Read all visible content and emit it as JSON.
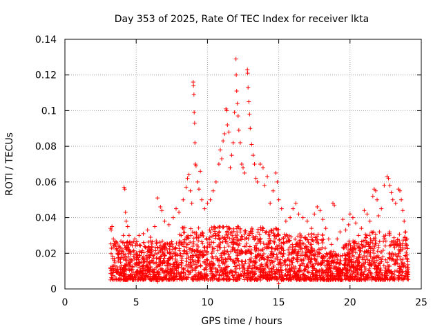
{
  "chart_data": {
    "type": "scatter",
    "title": "Day 353 of 2025, Rate Of TEC Index for receiver lkta",
    "xlabel": "GPS time / hours",
    "ylabel": "ROTI / TECUs",
    "xlim": [
      0,
      25
    ],
    "ylim": [
      0,
      0.14
    ],
    "xticks": [
      0,
      5,
      10,
      15,
      20,
      25
    ],
    "yticks": [
      0,
      0.02,
      0.04,
      0.06,
      0.08,
      0.1,
      0.12,
      0.14
    ],
    "xtick_labels": [
      "0",
      "5",
      "10",
      "15",
      "20",
      "25"
    ],
    "ytick_labels": [
      "0",
      "0.02",
      "0.04",
      "0.06",
      "0.08",
      "0.1",
      "0.12",
      "0.14"
    ],
    "grid": true,
    "marker": "plus",
    "color": "#ff0000",
    "series": [
      {
        "points": [
          [
            3.2,
            0.034
          ],
          [
            3.25,
            0.033
          ],
          [
            3.3,
            0.035
          ],
          [
            3.4,
            0.028
          ],
          [
            3.5,
            0.024
          ],
          [
            3.6,
            0.022
          ],
          [
            3.7,
            0.02
          ],
          [
            3.8,
            0.024
          ],
          [
            4.0,
            0.021
          ],
          [
            4.1,
            0.03
          ],
          [
            4.15,
            0.057
          ],
          [
            4.2,
            0.056
          ],
          [
            4.25,
            0.043
          ],
          [
            4.3,
            0.038
          ],
          [
            4.4,
            0.035
          ],
          [
            4.5,
            0.03
          ],
          [
            4.7,
            0.026
          ],
          [
            4.9,
            0.028
          ],
          [
            5.2,
            0.03
          ],
          [
            5.5,
            0.031
          ],
          [
            5.8,
            0.033
          ],
          [
            6.0,
            0.029
          ],
          [
            6.3,
            0.035
          ],
          [
            6.5,
            0.051
          ],
          [
            6.7,
            0.046
          ],
          [
            6.8,
            0.044
          ],
          [
            7.0,
            0.038
          ],
          [
            7.3,
            0.036
          ],
          [
            7.6,
            0.04
          ],
          [
            7.8,
            0.045
          ],
          [
            8.0,
            0.043
          ],
          [
            8.3,
            0.05
          ],
          [
            8.5,
            0.057
          ],
          [
            8.6,
            0.062
          ],
          [
            8.7,
            0.064
          ],
          [
            8.8,
            0.055
          ],
          [
            8.9,
            0.048
          ],
          [
            9.0,
            0.116
          ],
          [
            9.02,
            0.114
          ],
          [
            9.05,
            0.109
          ],
          [
            9.07,
            0.099
          ],
          [
            9.1,
            0.093
          ],
          [
            9.12,
            0.082
          ],
          [
            9.15,
            0.07
          ],
          [
            9.2,
            0.069
          ],
          [
            9.3,
            0.06
          ],
          [
            9.4,
            0.056
          ],
          [
            9.5,
            0.066
          ],
          [
            9.6,
            0.05
          ],
          [
            9.8,
            0.045
          ],
          [
            10.0,
            0.048
          ],
          [
            10.2,
            0.05
          ],
          [
            10.4,
            0.055
          ],
          [
            10.6,
            0.06
          ],
          [
            10.8,
            0.07
          ],
          [
            10.9,
            0.078
          ],
          [
            11.0,
            0.073
          ],
          [
            11.1,
            0.083
          ],
          [
            11.2,
            0.087
          ],
          [
            11.3,
            0.101
          ],
          [
            11.35,
            0.1
          ],
          [
            11.4,
            0.092
          ],
          [
            11.5,
            0.088
          ],
          [
            11.6,
            0.068
          ],
          [
            11.7,
            0.075
          ],
          [
            11.8,
            0.082
          ],
          [
            11.9,
            0.099
          ],
          [
            12.0,
            0.129
          ],
          [
            12.02,
            0.12
          ],
          [
            12.05,
            0.111
          ],
          [
            12.1,
            0.104
          ],
          [
            12.15,
            0.097
          ],
          [
            12.2,
            0.089
          ],
          [
            12.3,
            0.082
          ],
          [
            12.4,
            0.07
          ],
          [
            12.5,
            0.068
          ],
          [
            12.6,
            0.065
          ],
          [
            12.8,
            0.123
          ],
          [
            12.82,
            0.121
          ],
          [
            12.85,
            0.113
          ],
          [
            12.9,
            0.105
          ],
          [
            12.95,
            0.098
          ],
          [
            13.0,
            0.09
          ],
          [
            13.1,
            0.081
          ],
          [
            13.2,
            0.075
          ],
          [
            13.3,
            0.07
          ],
          [
            13.4,
            0.062
          ],
          [
            13.5,
            0.06
          ],
          [
            13.7,
            0.07
          ],
          [
            13.9,
            0.068
          ],
          [
            14.0,
            0.058
          ],
          [
            14.2,
            0.063
          ],
          [
            14.4,
            0.048
          ],
          [
            14.6,
            0.055
          ],
          [
            14.8,
            0.065
          ],
          [
            14.9,
            0.06
          ],
          [
            15.0,
            0.05
          ],
          [
            15.2,
            0.045
          ],
          [
            15.5,
            0.038
          ],
          [
            15.8,
            0.04
          ],
          [
            16.0,
            0.045
          ],
          [
            16.2,
            0.048
          ],
          [
            16.4,
            0.042
          ],
          [
            16.7,
            0.04
          ],
          [
            17.0,
            0.038
          ],
          [
            17.3,
            0.034
          ],
          [
            17.5,
            0.042
          ],
          [
            17.7,
            0.046
          ],
          [
            17.9,
            0.044
          ],
          [
            18.1,
            0.039
          ],
          [
            18.3,
            0.034
          ],
          [
            18.5,
            0.028
          ],
          [
            18.7,
            0.025
          ],
          [
            18.8,
            0.048
          ],
          [
            18.9,
            0.047
          ],
          [
            19.1,
            0.028
          ],
          [
            19.3,
            0.032
          ],
          [
            19.5,
            0.039
          ],
          [
            19.7,
            0.033
          ],
          [
            19.9,
            0.036
          ],
          [
            20.0,
            0.042
          ],
          [
            20.2,
            0.04
          ],
          [
            20.4,
            0.037
          ],
          [
            20.6,
            0.03
          ],
          [
            20.8,
            0.034
          ],
          [
            21.0,
            0.044
          ],
          [
            21.2,
            0.042
          ],
          [
            21.4,
            0.038
          ],
          [
            21.6,
            0.052
          ],
          [
            21.7,
            0.056
          ],
          [
            21.8,
            0.055
          ],
          [
            21.9,
            0.05
          ],
          [
            22.0,
            0.041
          ],
          [
            22.2,
            0.045
          ],
          [
            22.4,
            0.058
          ],
          [
            22.6,
            0.063
          ],
          [
            22.7,
            0.062
          ],
          [
            22.8,
            0.058
          ],
          [
            22.9,
            0.054
          ],
          [
            23.0,
            0.05
          ],
          [
            23.2,
            0.048
          ],
          [
            23.4,
            0.056
          ],
          [
            23.5,
            0.055
          ],
          [
            23.6,
            0.05
          ],
          [
            23.7,
            0.044
          ],
          [
            23.8,
            0.038
          ],
          [
            23.9,
            0.032
          ],
          [
            24.0,
            0.028
          ],
          [
            3.2,
            0.012
          ],
          [
            3.3,
            0.011
          ],
          [
            3.5,
            0.013
          ],
          [
            3.7,
            0.009
          ],
          [
            3.9,
            0.015
          ],
          [
            4.1,
            0.012
          ],
          [
            4.3,
            0.016
          ],
          [
            4.6,
            0.011
          ],
          [
            4.9,
            0.014
          ],
          [
            5.2,
            0.012
          ],
          [
            5.5,
            0.015
          ],
          [
            5.8,
            0.013
          ],
          [
            6.1,
            0.016
          ],
          [
            6.4,
            0.012
          ],
          [
            6.7,
            0.018
          ],
          [
            7.0,
            0.015
          ],
          [
            7.3,
            0.017
          ],
          [
            7.6,
            0.014
          ],
          [
            7.9,
            0.019
          ],
          [
            8.2,
            0.016
          ],
          [
            8.5,
            0.02
          ],
          [
            8.8,
            0.018
          ],
          [
            9.1,
            0.021
          ],
          [
            9.4,
            0.017
          ],
          [
            9.7,
            0.019
          ],
          [
            10.0,
            0.016
          ],
          [
            10.3,
            0.02
          ],
          [
            10.6,
            0.018
          ],
          [
            10.9,
            0.023
          ],
          [
            11.2,
            0.02
          ],
          [
            11.5,
            0.024
          ],
          [
            11.8,
            0.022
          ],
          [
            12.1,
            0.025
          ],
          [
            12.4,
            0.021
          ],
          [
            12.7,
            0.024
          ],
          [
            13.0,
            0.02
          ],
          [
            13.3,
            0.023
          ],
          [
            13.6,
            0.019
          ],
          [
            13.9,
            0.022
          ],
          [
            14.2,
            0.018
          ],
          [
            14.5,
            0.021
          ],
          [
            14.8,
            0.017
          ],
          [
            15.1,
            0.02
          ],
          [
            15.4,
            0.016
          ],
          [
            15.7,
            0.019
          ],
          [
            16.0,
            0.017
          ],
          [
            16.3,
            0.02
          ],
          [
            16.6,
            0.016
          ],
          [
            16.9,
            0.018
          ],
          [
            17.2,
            0.015
          ],
          [
            17.5,
            0.017
          ],
          [
            17.8,
            0.014
          ],
          [
            18.1,
            0.016
          ],
          [
            18.4,
            0.012
          ],
          [
            18.7,
            0.013
          ],
          [
            19.0,
            0.011
          ],
          [
            19.3,
            0.014
          ],
          [
            19.6,
            0.012
          ],
          [
            19.9,
            0.015
          ],
          [
            20.2,
            0.013
          ],
          [
            20.5,
            0.016
          ],
          [
            20.8,
            0.012
          ],
          [
            21.1,
            0.015
          ],
          [
            21.4,
            0.013
          ],
          [
            21.7,
            0.017
          ],
          [
            22.0,
            0.014
          ],
          [
            22.3,
            0.018
          ],
          [
            22.6,
            0.015
          ],
          [
            22.9,
            0.019
          ],
          [
            23.2,
            0.016
          ],
          [
            23.5,
            0.018
          ],
          [
            23.8,
            0.014
          ],
          [
            24.0,
            0.012
          ],
          [
            15.0,
            0.003
          ],
          [
            13.5,
            0.005
          ],
          [
            10.5,
            0.006
          ],
          [
            6.5,
            0.004
          ],
          [
            20.5,
            0.005
          ]
        ]
      }
    ]
  }
}
